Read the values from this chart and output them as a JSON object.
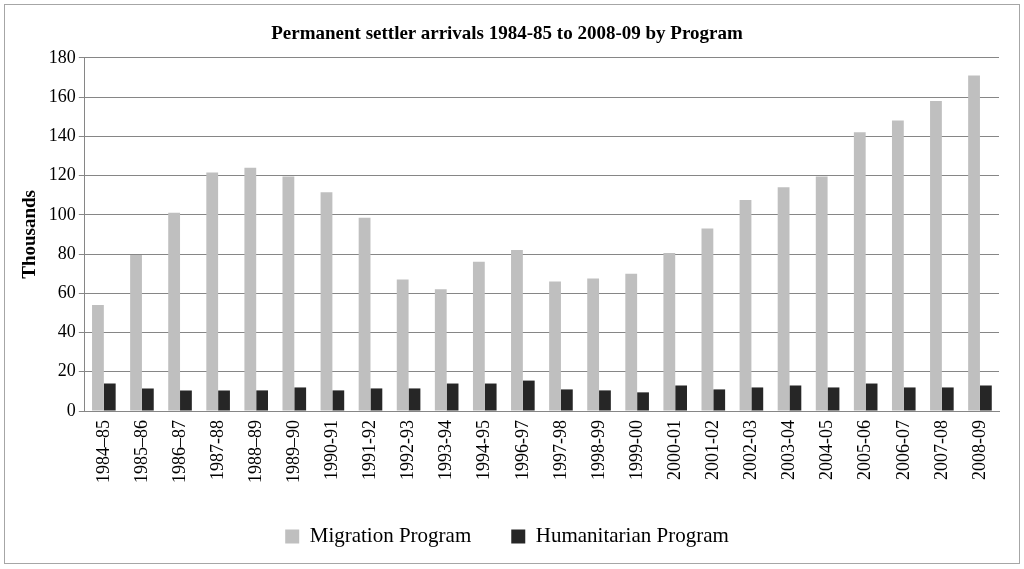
{
  "chart_data": {
    "type": "bar",
    "title": "Permanent settler arrivals 1984-85 to 2008-09 by Program",
    "ylabel": "Thousands",
    "categories": [
      "1984–85",
      "1985–86",
      "1986–87",
      "1987-88",
      "1988–89",
      "1989–90",
      "1990-91",
      "1991-92",
      "1992-93",
      "1993-94",
      "1994-95",
      "1996-97",
      "1997-98",
      "1998-99",
      "1999-00",
      "2000-01",
      "2001-02",
      "2002-03",
      "2003-04",
      "2004-05",
      "2005-06",
      "2006-07",
      "2007-08",
      "2008-09"
    ],
    "series": [
      {
        "name": "Migration Program",
        "color": "#bfbfbf",
        "values": [
          54,
          79.5,
          101,
          121.5,
          124,
          119.5,
          111.5,
          98.5,
          67,
          62,
          76,
          82,
          66,
          67.5,
          70,
          80.5,
          93,
          107.5,
          114,
          119.5,
          142,
          148,
          158,
          171
        ]
      },
      {
        "name": "Humanitarian Program",
        "color": "#262626",
        "values": [
          14,
          11.5,
          10.5,
          10.5,
          10.5,
          12,
          10.5,
          11.5,
          11.5,
          14,
          14,
          15.5,
          11,
          10.5,
          9.5,
          13,
          11,
          12,
          13,
          12,
          14,
          12,
          12,
          13
        ]
      }
    ],
    "ylim": [
      0,
      180
    ],
    "yticks": [
      0,
      20,
      40,
      60,
      80,
      100,
      120,
      140,
      160,
      180
    ],
    "grid": "y",
    "legend": "bottom"
  }
}
